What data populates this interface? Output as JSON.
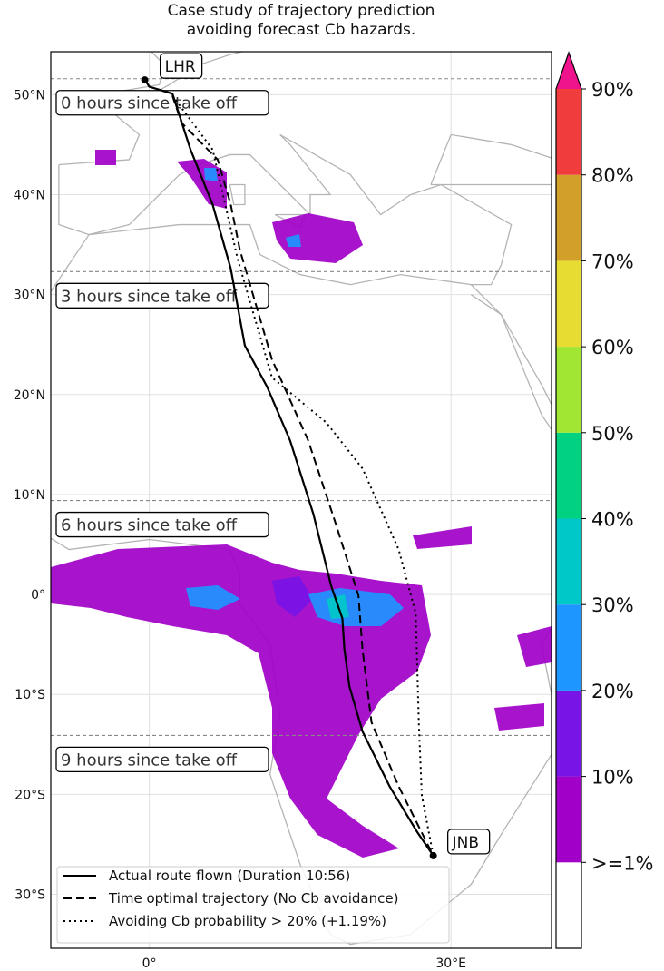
{
  "chart_data": {
    "type": "map",
    "title": "Case study of trajectory prediction\navoiding forecast Cb hazards.",
    "title_lines": [
      "Case study of trajectory prediction",
      "avoiding forecast Cb hazards."
    ],
    "lon_range": [
      -9.8,
      40
    ],
    "lat_range": [
      -35.4,
      54.3
    ],
    "grid": true,
    "lat_ticks": [
      {
        "value": 50,
        "label": "50°N"
      },
      {
        "value": 40,
        "label": "40°N"
      },
      {
        "value": 30,
        "label": "30°N"
      },
      {
        "value": 20,
        "label": "20°N"
      },
      {
        "value": 10,
        "label": "10°N"
      },
      {
        "value": 0,
        "label": "0°"
      },
      {
        "value": -10,
        "label": "10°S"
      },
      {
        "value": -20,
        "label": "20°S"
      },
      {
        "value": -30,
        "label": "30°S"
      }
    ],
    "lon_ticks": [
      {
        "value": 0,
        "label": "0°"
      },
      {
        "value": 30,
        "label": "30°E"
      }
    ],
    "airports": [
      {
        "code": "LHR",
        "lon": -0.45,
        "lat": 51.47
      },
      {
        "code": "JNB",
        "lon": 28.24,
        "lat": -26.13
      }
    ],
    "time_markers": [
      {
        "label": "0 hours since take off",
        "lat": 51.6
      },
      {
        "label": "3 hours since take off",
        "lat": 32.3
      },
      {
        "label": "6 hours since take off",
        "lat": 9.4
      },
      {
        "label": "9 hours since take off",
        "lat": -14.1
      }
    ],
    "series": [
      {
        "name": "Actual route flown (Duration 10:56)",
        "style": "solid",
        "points": [
          [
            -0.45,
            51.5
          ],
          [
            0,
            50.8
          ],
          [
            2.3,
            50.1
          ],
          [
            4.1,
            44.5
          ],
          [
            6.3,
            39.0
          ],
          [
            8.1,
            32.6
          ],
          [
            9.5,
            24.9
          ],
          [
            11.7,
            20.8
          ],
          [
            14.0,
            15.4
          ],
          [
            16.3,
            8.1
          ],
          [
            18.1,
            0.8
          ],
          [
            19.2,
            -2.4
          ],
          [
            19.4,
            -5.5
          ],
          [
            19.9,
            -9.2
          ],
          [
            21.2,
            -13.7
          ],
          [
            23.9,
            -19.2
          ],
          [
            26.6,
            -23.7
          ],
          [
            28.24,
            -26.13
          ]
        ]
      },
      {
        "name": "Time optimal trajectory (No Cb avoidance)",
        "style": "dashed",
        "points": [
          [
            2.3,
            49.9
          ],
          [
            3.2,
            47.2
          ],
          [
            6.8,
            43.5
          ],
          [
            8.1,
            39.0
          ],
          [
            9.0,
            34.5
          ],
          [
            12.2,
            23.5
          ],
          [
            15.8,
            15.4
          ],
          [
            18.5,
            7.2
          ],
          [
            20.8,
            -0.1
          ],
          [
            21.2,
            -5.5
          ],
          [
            22.1,
            -12.8
          ],
          [
            24.8,
            -19.2
          ],
          [
            28.24,
            -26.13
          ]
        ]
      },
      {
        "name": "Avoiding Cb probability > 20% (+1.19%)",
        "style": "dotted",
        "points": [
          [
            2.3,
            49.9
          ],
          [
            6.3,
            44.5
          ],
          [
            8.8,
            33.5
          ],
          [
            12.2,
            21.7
          ],
          [
            17.6,
            17.2
          ],
          [
            21.2,
            12.6
          ],
          [
            24.8,
            4.5
          ],
          [
            26.5,
            -1.9
          ],
          [
            26.8,
            -12.8
          ],
          [
            27.1,
            -20.1
          ],
          [
            28.24,
            -26.13
          ]
        ]
      }
    ],
    "legend_placement": "lower-left",
    "colorbar": {
      "extend": "max",
      "boundaries": [
        1,
        10,
        20,
        30,
        40,
        50,
        60,
        70,
        80,
        90
      ],
      "tick_labels": [
        ">=1%",
        "10%",
        "20%",
        "30%",
        "40%",
        "50%",
        "60%",
        "70%",
        "80%",
        "90%"
      ],
      "colors": [
        "#ffffff",
        "#a000c8",
        "#7814e6",
        "#1e96ff",
        "#00c8c8",
        "#00d282",
        "#a0e632",
        "#e6dc32",
        "#d2a028",
        "#f03c3c",
        "#f0148c"
      ]
    },
    "coastline_color": "#b4b4b4"
  }
}
